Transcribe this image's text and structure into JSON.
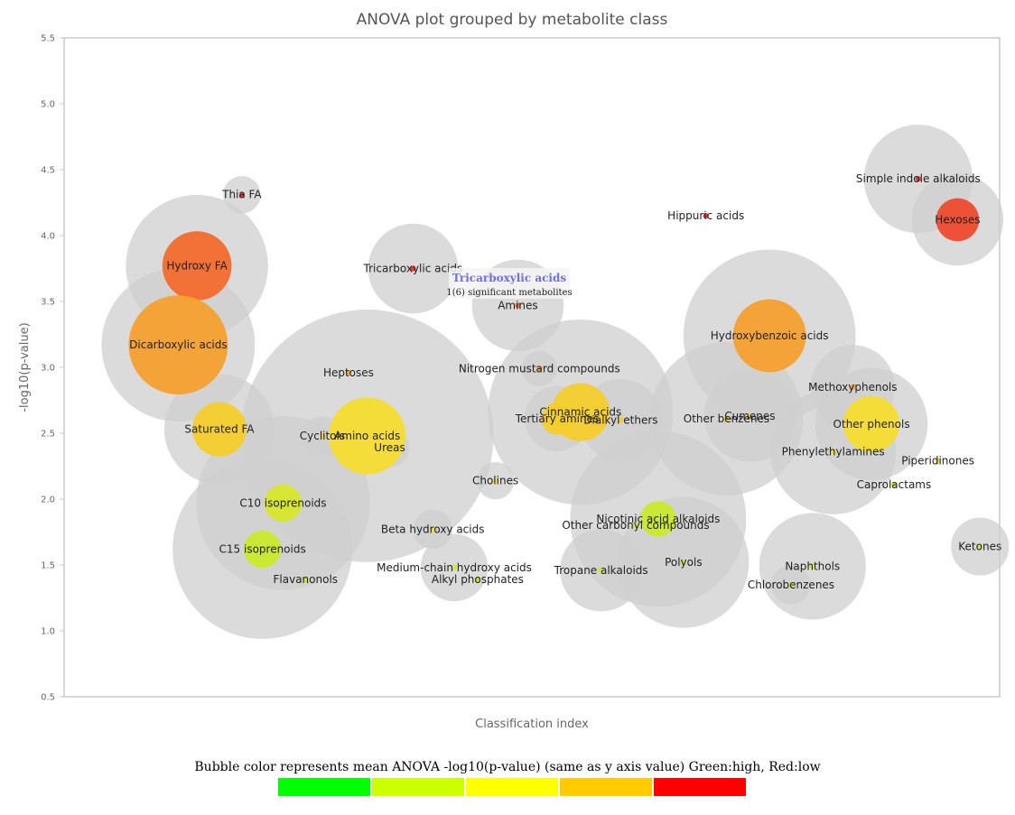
{
  "chart_data": {
    "type": "bubble",
    "title": "ANOVA plot grouped by metabolite class",
    "xlabel": "Classification index",
    "ylabel": "-log10(p-value)",
    "ylim": [
      0.5,
      5.5
    ],
    "yticks": [
      "0.5",
      "1.0",
      "1.5",
      "2.0",
      "2.5",
      "3.0",
      "3.5",
      "4.0",
      "4.5",
      "5.0",
      "5.5"
    ],
    "xlim": [
      0,
      100
    ],
    "points": [
      {
        "label": "Thia FA",
        "x": 19,
        "y": 4.31,
        "outer": 2.0,
        "inner": 0.3,
        "color": "#e8332a"
      },
      {
        "label": "Hydroxy FA",
        "x": 14.2,
        "y": 3.77,
        "outer": 7.6,
        "inner": 3.7,
        "color": "#f26c2d"
      },
      {
        "label": "Dicarboxylic acids",
        "x": 12.2,
        "y": 3.17,
        "outer": 8.2,
        "inner": 5.3,
        "color": "#f5a030"
      },
      {
        "label": "Saturated FA",
        "x": 16.6,
        "y": 2.53,
        "outer": 5.9,
        "inner": 2.9,
        "color": "#f5cd2c"
      },
      {
        "label": "C10 isoprenoids",
        "x": 23.4,
        "y": 1.97,
        "outer": 9.3,
        "inner": 2.0,
        "color": "#d7e62c"
      },
      {
        "label": "C15 isoprenoids",
        "x": 21.2,
        "y": 1.62,
        "outer": 9.6,
        "inner": 2.0,
        "color": "#c8ea2c"
      },
      {
        "label": "Flavanonols",
        "x": 25.8,
        "y": 1.39,
        "outer": 0,
        "inner": 0.3,
        "color": "#c8ea2c"
      },
      {
        "label": "Heptoses",
        "x": 30.4,
        "y": 2.96,
        "outer": 0,
        "inner": 0.3,
        "color": "#f5a030"
      },
      {
        "label": "Cyclitols",
        "x": 27.6,
        "y": 2.48,
        "outer": 2.1,
        "inner": 0.3,
        "color": "#f5cd2c"
      },
      {
        "label": "Amino acids",
        "x": 32.4,
        "y": 2.48,
        "outer": 13.5,
        "inner": 4.1,
        "color": "#f5dd30"
      },
      {
        "label": "Ureas",
        "x": 34.8,
        "y": 2.39,
        "outer": 2.1,
        "inner": 0.3,
        "color": "#f5dd30"
      },
      {
        "label": "Tricarboxylic acids",
        "x": 37.3,
        "y": 3.75,
        "outer": 4.8,
        "inner": 0.3,
        "color": "#e8332a"
      },
      {
        "label": "Amines",
        "x": 48.5,
        "y": 3.47,
        "outer": 4.9,
        "inner": 0.3,
        "color": "#f26c2d"
      },
      {
        "label": "Nitrogen mustard compounds",
        "x": 50.8,
        "y": 2.99,
        "outer": 1.9,
        "inner": 0.3,
        "color": "#f5a030"
      },
      {
        "label": "Cholines",
        "x": 46.1,
        "y": 2.14,
        "outer": 2.0,
        "inner": 0.3,
        "color": "#f5dd30"
      },
      {
        "label": "Beta hydroxy acids",
        "x": 39.4,
        "y": 1.77,
        "outer": 2.1,
        "inner": 0.3,
        "color": "#f5dd30"
      },
      {
        "label": "Medium-chain hydroxy acids",
        "x": 41.7,
        "y": 1.48,
        "outer": 3.6,
        "inner": 0.3,
        "color": "#d7e62c"
      },
      {
        "label": "Alkyl phosphates",
        "x": 44.2,
        "y": 1.39,
        "outer": 0,
        "inner": 0.3,
        "color": "#c8ea2c"
      },
      {
        "label": "Cinnamic acids",
        "x": 55.2,
        "y": 2.66,
        "outer": 9.9,
        "inner": 3.1,
        "color": "#f5cd2c"
      },
      {
        "label": "Tertiary amines",
        "x": 52.7,
        "y": 2.61,
        "outer": 3.5,
        "inner": 1.7,
        "color": "#f5cd2c"
      },
      {
        "label": "Dialkyl ethers",
        "x": 59.5,
        "y": 2.6,
        "outer": 4.4,
        "inner": 0.3,
        "color": "#f5cd2c"
      },
      {
        "label": "Nicotinic acid alkaloids",
        "x": 63.5,
        "y": 1.85,
        "outer": 9.4,
        "inner": 1.9,
        "color": "#c8ea2c"
      },
      {
        "label": "Other carbonyl compounds",
        "x": 61.1,
        "y": 1.8,
        "outer": 0,
        "inner": 0.3,
        "color": "#c8ea2c"
      },
      {
        "label": "Tropane alkaloids",
        "x": 57.4,
        "y": 1.46,
        "outer": 4.4,
        "inner": 0.3,
        "color": "#c8ea2c"
      },
      {
        "label": "Polyols",
        "x": 66.2,
        "y": 1.52,
        "outer": 7.0,
        "inner": 0.3,
        "color": "#c8ea2c"
      },
      {
        "label": "Hippuric acids",
        "x": 68.6,
        "y": 4.15,
        "outer": 0,
        "inner": 0.3,
        "color": "#e8332a"
      },
      {
        "label": "Hydroxybenzoic acids",
        "x": 75.4,
        "y": 3.24,
        "outer": 9.2,
        "inner": 3.9,
        "color": "#f5a030"
      },
      {
        "label": "Other benzenes",
        "x": 70.8,
        "y": 2.61,
        "outer": 8.2,
        "inner": 0.3,
        "color": "#f5cd2c"
      },
      {
        "label": "Cumenes",
        "x": 73.3,
        "y": 2.63,
        "outer": 4.9,
        "inner": 0.3,
        "color": "#f5cd2c"
      },
      {
        "label": "Methoxyphenols",
        "x": 84.3,
        "y": 2.85,
        "outer": 4.5,
        "inner": 0.3,
        "color": "#f5a030"
      },
      {
        "label": "Other phenols",
        "x": 86.3,
        "y": 2.57,
        "outer": 6.0,
        "inner": 3.0,
        "color": "#f5dd30"
      },
      {
        "label": "Phenylethylamines",
        "x": 82.2,
        "y": 2.36,
        "outer": 6.7,
        "inner": 0.3,
        "color": "#f5dd30"
      },
      {
        "label": "Piperidinones",
        "x": 93.4,
        "y": 2.29,
        "outer": 0,
        "inner": 0.3,
        "color": "#f5dd30"
      },
      {
        "label": "Caprolactams",
        "x": 88.7,
        "y": 2.11,
        "outer": 0,
        "inner": 0.3,
        "color": "#c8ea2c"
      },
      {
        "label": "Ketones",
        "x": 97.9,
        "y": 1.64,
        "outer": 3.1,
        "inner": 0.3,
        "color": "#c8ea2c"
      },
      {
        "label": "Naphthols",
        "x": 80.0,
        "y": 1.49,
        "outer": 5.7,
        "inner": 0.3,
        "color": "#c8ea2c"
      },
      {
        "label": "Chlorobenzenes",
        "x": 77.7,
        "y": 1.35,
        "outer": 2.1,
        "inner": 0.3,
        "color": "#c8ea2c"
      },
      {
        "label": "Simple indole alkaloids",
        "x": 91.3,
        "y": 4.43,
        "outer": 5.8,
        "inner": 0.3,
        "color": "#e8332a"
      },
      {
        "label": "Hexoses",
        "x": 95.5,
        "y": 4.12,
        "outer": 4.9,
        "inner": 2.3,
        "color": "#ee4a2e"
      }
    ],
    "tooltip": {
      "title": "Tricarboxylic acids",
      "body": "1(6) significant metabolites"
    }
  },
  "legend": {
    "caption": "Bubble color represents mean ANOVA -log10(p-value) (same as y axis value) Green:high, Red:low",
    "swatches": [
      "#00ff00",
      "#ccff00",
      "#ffff00",
      "#ffcc00",
      "#ff0000"
    ]
  }
}
